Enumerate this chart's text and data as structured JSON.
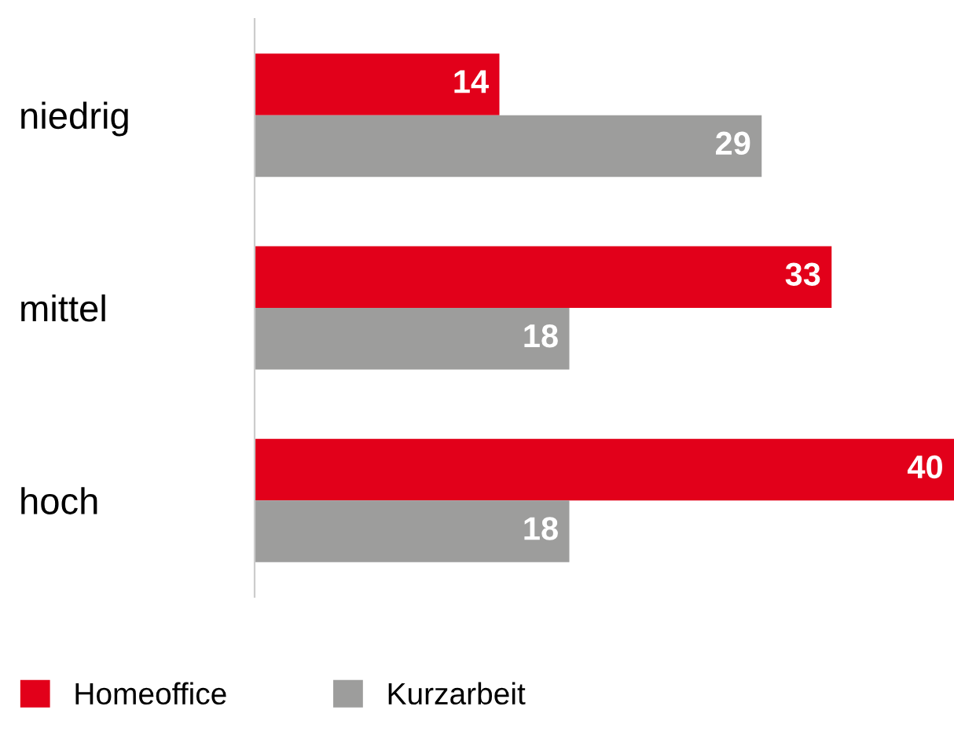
{
  "chart_data": {
    "type": "bar",
    "orientation": "horizontal",
    "categories": [
      "niedrig",
      "mittel",
      "hoch"
    ],
    "series": [
      {
        "name": "Homeoffice",
        "color": "#e2001a",
        "values": [
          14,
          33,
          40
        ]
      },
      {
        "name": "Kurzarbeit",
        "color": "#9d9d9c",
        "values": [
          29,
          18,
          18
        ]
      }
    ],
    "data_labels": true,
    "legend": "bottom left",
    "grid": false
  }
}
